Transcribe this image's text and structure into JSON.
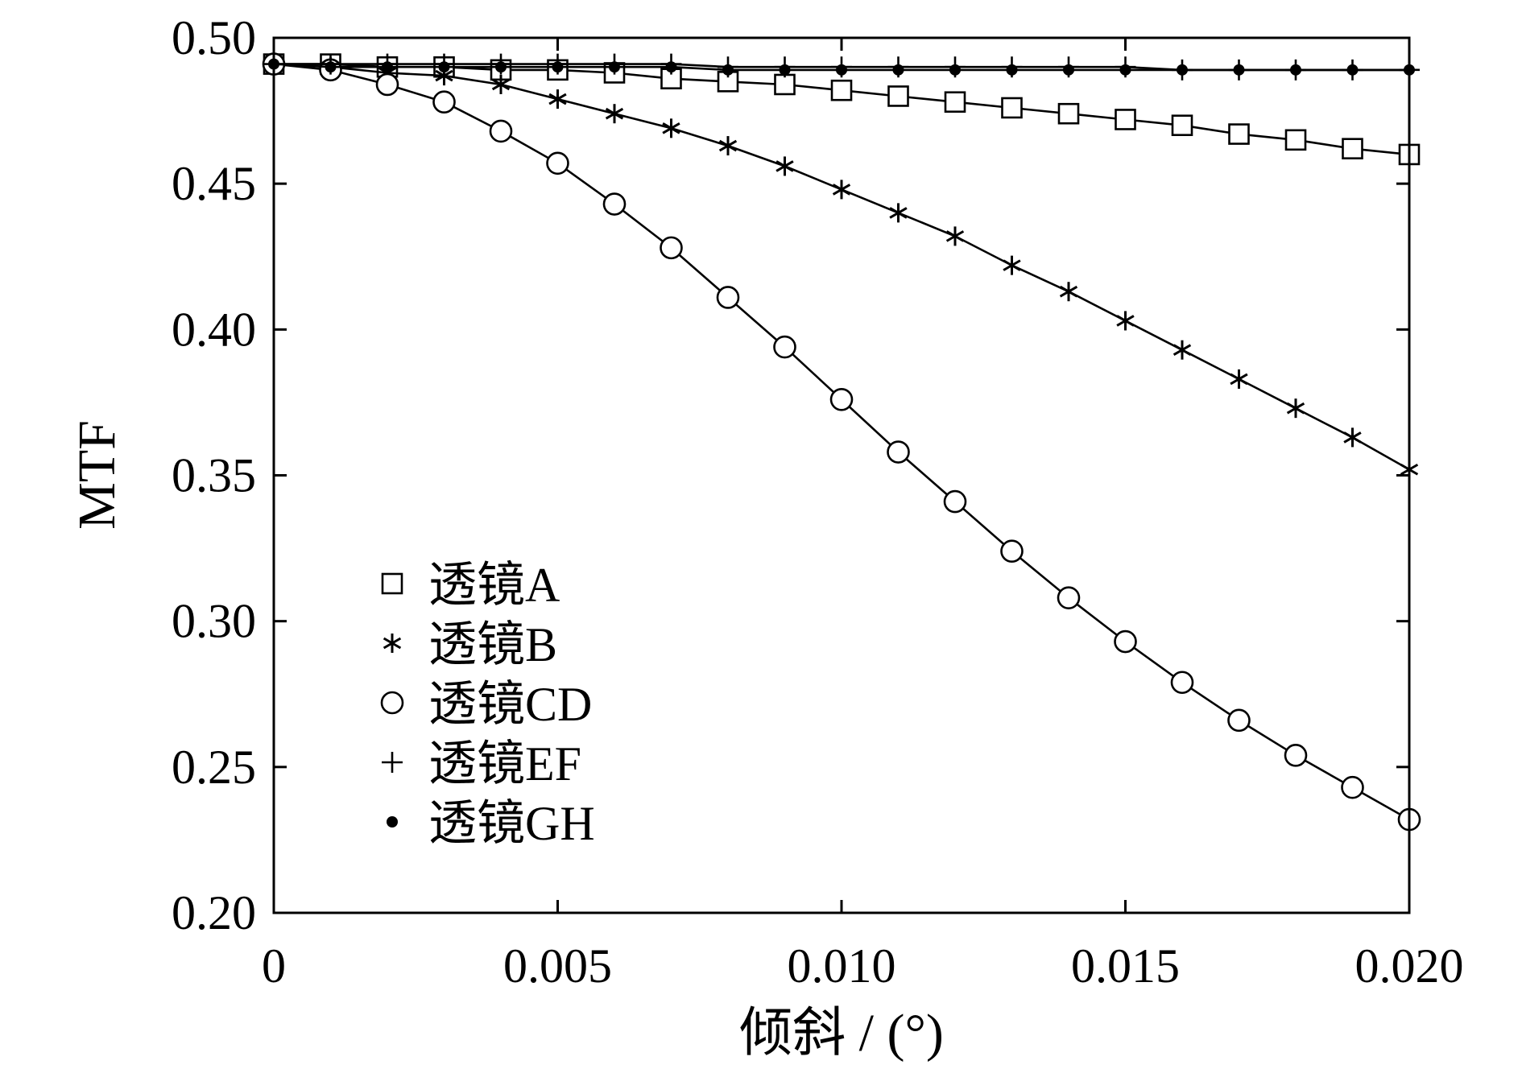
{
  "chart_data": {
    "type": "line",
    "title": "",
    "xlabel": "倾斜 / (°)",
    "ylabel": "MTF",
    "xlim": [
      0,
      0.02
    ],
    "ylim": [
      0.2,
      0.5
    ],
    "xticks": [
      0,
      0.005,
      0.01,
      0.015,
      0.02
    ],
    "xtick_labels": [
      "0",
      "0.005",
      "0.010",
      "0.015",
      "0.020"
    ],
    "yticks": [
      0.2,
      0.25,
      0.3,
      0.35,
      0.4,
      0.45,
      0.5
    ],
    "ytick_labels": [
      "0.20",
      "0.25",
      "0.30",
      "0.35",
      "0.40",
      "0.45",
      "0.50"
    ],
    "grid": false,
    "legend_position": "lower-left",
    "x": [
      0,
      0.001,
      0.002,
      0.003,
      0.004,
      0.005,
      0.006,
      0.007,
      0.008,
      0.009,
      0.01,
      0.011,
      0.012,
      0.013,
      0.014,
      0.015,
      0.016,
      0.017,
      0.018,
      0.019,
      0.02
    ],
    "series": [
      {
        "name": "透镜A",
        "marker": "square",
        "values": [
          0.491,
          0.491,
          0.49,
          0.49,
          0.489,
          0.489,
          0.488,
          0.486,
          0.485,
          0.484,
          0.482,
          0.48,
          0.478,
          0.476,
          0.474,
          0.472,
          0.47,
          0.467,
          0.465,
          0.462,
          0.46
        ]
      },
      {
        "name": "透镜B",
        "marker": "asterisk",
        "values": [
          0.491,
          0.49,
          0.488,
          0.487,
          0.484,
          0.479,
          0.474,
          0.469,
          0.463,
          0.456,
          0.448,
          0.44,
          0.432,
          0.422,
          0.413,
          0.403,
          0.393,
          0.383,
          0.373,
          0.363,
          0.352
        ]
      },
      {
        "name": "透镜CD",
        "marker": "circle",
        "values": [
          0.491,
          0.489,
          0.484,
          0.478,
          0.468,
          0.457,
          0.443,
          0.428,
          0.411,
          0.394,
          0.376,
          0.358,
          0.341,
          0.324,
          0.308,
          0.293,
          0.279,
          0.266,
          0.254,
          0.243,
          0.232
        ]
      },
      {
        "name": "透镜EF",
        "marker": "plus",
        "values": [
          0.491,
          0.491,
          0.491,
          0.491,
          0.491,
          0.491,
          0.491,
          0.491,
          0.49,
          0.49,
          0.49,
          0.49,
          0.49,
          0.49,
          0.49,
          0.49,
          0.489,
          0.489,
          0.489,
          0.489,
          0.489
        ]
      },
      {
        "name": "透镜GH",
        "marker": "dot",
        "values": [
          0.491,
          0.49,
          0.49,
          0.49,
          0.49,
          0.49,
          0.49,
          0.49,
          0.489,
          0.489,
          0.489,
          0.489,
          0.489,
          0.489,
          0.489,
          0.489,
          0.489,
          0.489,
          0.489,
          0.489,
          0.489
        ]
      }
    ]
  }
}
